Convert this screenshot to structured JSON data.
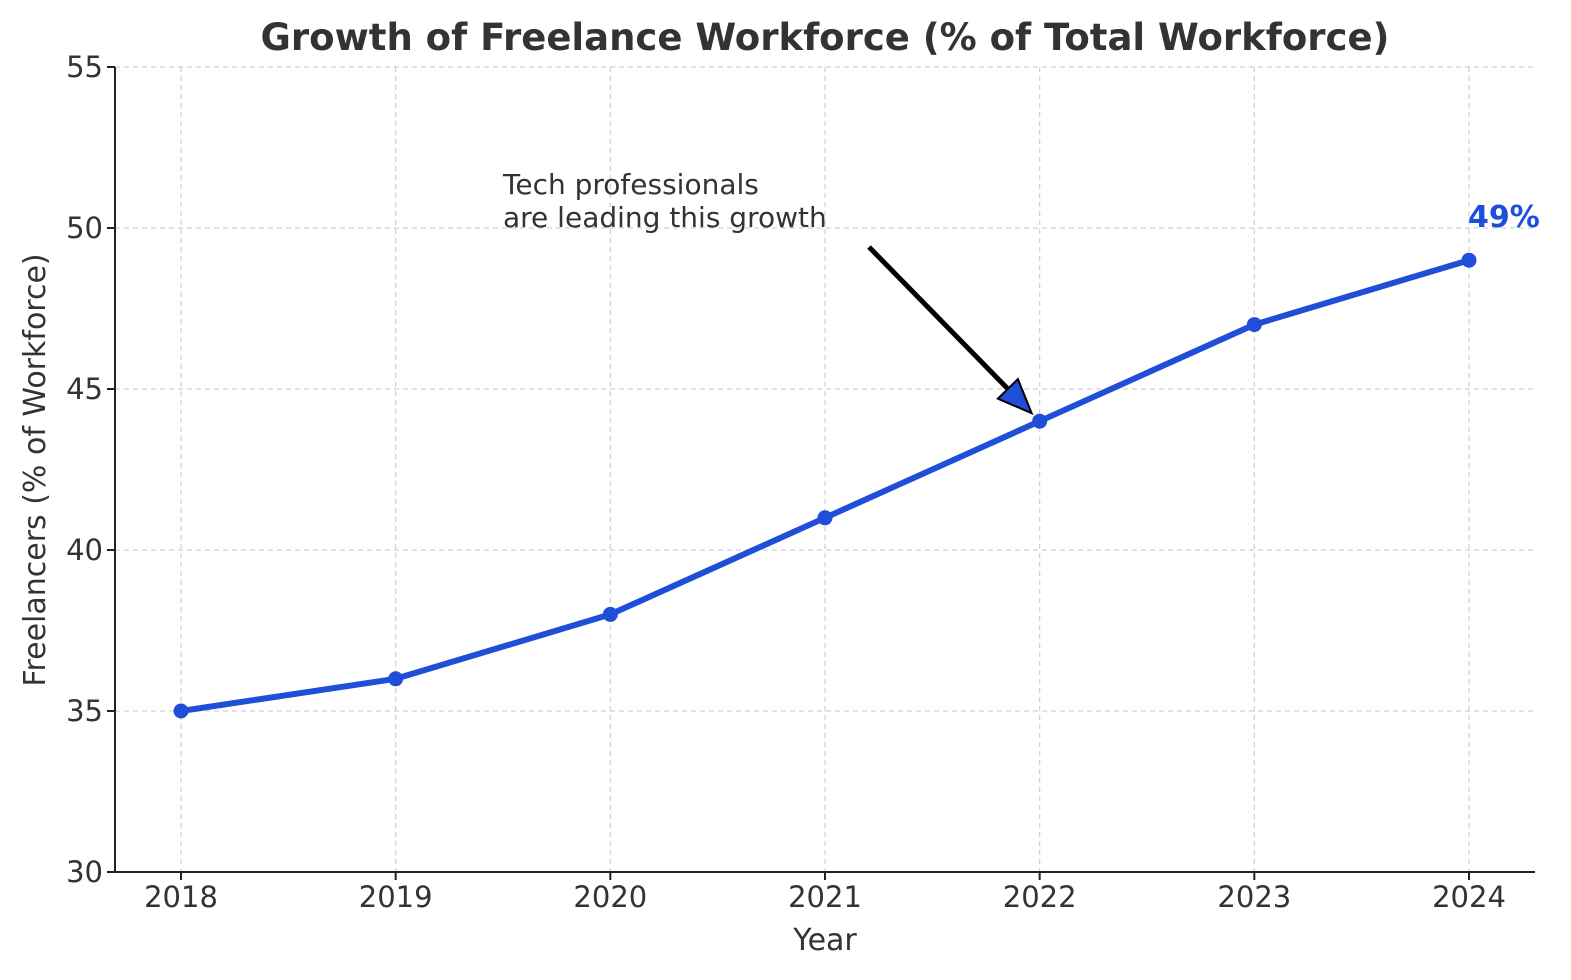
{
  "chart_data": {
    "type": "line",
    "title": "Growth of Freelance Workforce (% of Total Workforce)",
    "xlabel": "Year",
    "ylabel": "Freelancers (% of Workforce)",
    "categories": [
      "2018",
      "2019",
      "2020",
      "2021",
      "2022",
      "2023",
      "2024"
    ],
    "series": [
      {
        "values": [
          35,
          36,
          38,
          41,
          44,
          47,
          49
        ]
      }
    ],
    "ylim": [
      30,
      55
    ],
    "yticks": [
      30,
      35,
      40,
      45,
      50,
      55
    ],
    "grid": true,
    "line_color": "#1f4fd8",
    "annotation": {
      "lines": [
        "Tech professionals",
        "are leading this growth"
      ],
      "target_category": "2022"
    },
    "end_label": "49%"
  }
}
